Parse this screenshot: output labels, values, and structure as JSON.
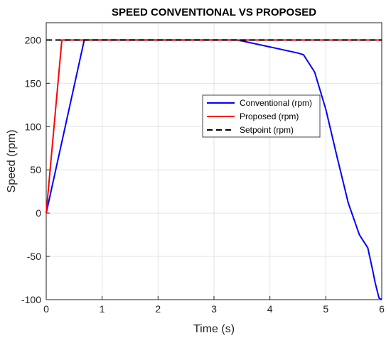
{
  "chart_data": {
    "type": "line",
    "title": "SPEED CONVENTIONAL VS PROPOSED",
    "xlabel": "Time (s)",
    "ylabel": "Speed (rpm)",
    "xlim": [
      0,
      6
    ],
    "ylim": [
      -100,
      220
    ],
    "xticks": [
      "0",
      "1",
      "2",
      "3",
      "4",
      "5",
      "6"
    ],
    "yticks": [
      "-100",
      "-50",
      "0",
      "50",
      "100",
      "150",
      "200"
    ],
    "xtick_values": [
      0,
      1,
      2,
      3,
      4,
      5,
      6
    ],
    "ytick_values": [
      -100,
      -50,
      0,
      50,
      100,
      150,
      200
    ],
    "grid": true,
    "legend_position": "center-right",
    "series": [
      {
        "name": "Conventional (rpm)",
        "color": "#0000ff",
        "dash": "solid",
        "x": [
          0,
          0.68,
          3.4,
          3.5,
          4.0,
          4.5,
          4.6,
          4.8,
          5.0,
          5.2,
          5.4,
          5.6,
          5.75,
          5.8,
          5.85,
          5.88,
          5.95,
          6.0
        ],
        "y": [
          0,
          200,
          200,
          199,
          192,
          185,
          183,
          163,
          120,
          65,
          12,
          -25,
          -40,
          -55,
          -70,
          -80,
          -98,
          -100
        ]
      },
      {
        "name": "Proposed (rpm)",
        "color": "#ff0000",
        "dash": "solid",
        "x": [
          0,
          0.28,
          6.0
        ],
        "y": [
          0,
          200,
          200
        ]
      },
      {
        "name": "Setpoint (rpm)",
        "color": "#000000",
        "dash": "dashed",
        "x": [
          0,
          6.0
        ],
        "y": [
          200,
          200
        ]
      }
    ]
  }
}
